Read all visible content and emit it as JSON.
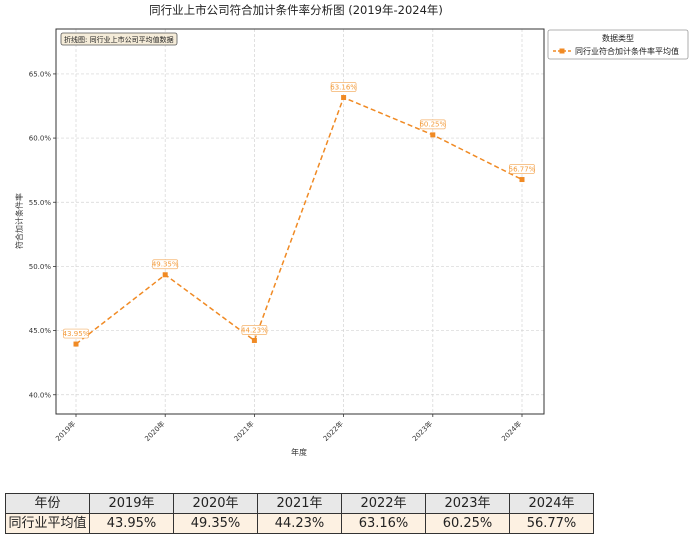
{
  "chart_data": {
    "type": "line",
    "title": "同行业上市公司符合加计条件率分析图 (2019年-2024年)",
    "xlabel": "年度",
    "ylabel": "符合加计条件率",
    "categories": [
      "2019年",
      "2020年",
      "2021年",
      "2022年",
      "2023年",
      "2024年"
    ],
    "series": [
      {
        "name": "同行业符合加计条件率平均值",
        "values": [
          43.95,
          49.35,
          44.23,
          63.16,
          60.25,
          56.77
        ]
      }
    ],
    "point_labels": [
      "43.95%",
      "49.35%",
      "44.23%",
      "63.16%",
      "60.25%",
      "56.77%"
    ],
    "ylim": [
      38.5,
      68.5
    ],
    "yticks": [
      40,
      45,
      50,
      55,
      60,
      65
    ],
    "ytick_labels": [
      "40.0%",
      "45.0%",
      "50.0%",
      "55.0%",
      "60.0%",
      "65.0%"
    ],
    "grid": true,
    "legend": {
      "title": "数据类型",
      "placement": "outside-top-right"
    },
    "annotation": "折线图: 同行业上市公司平均值数据",
    "line_color": "#f08a24"
  },
  "table": {
    "header_label": "年份",
    "row_label": "同行业平均值",
    "years": [
      "2019年",
      "2020年",
      "2021年",
      "2022年",
      "2023年",
      "2024年"
    ],
    "values": [
      "43.95%",
      "49.35%",
      "44.23%",
      "63.16%",
      "60.25%",
      "56.77%"
    ]
  }
}
